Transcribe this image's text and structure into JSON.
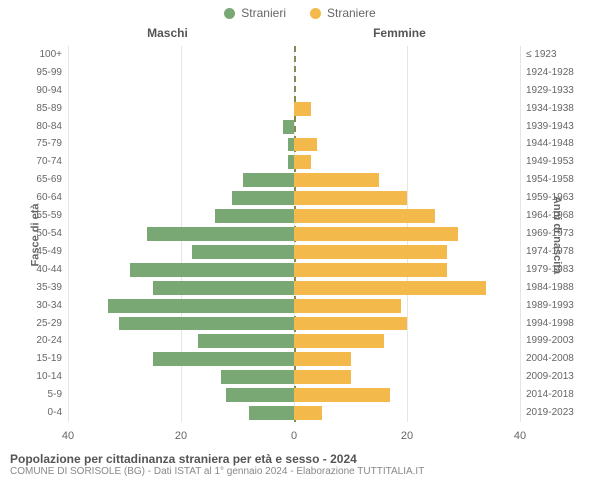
{
  "legend": {
    "male_label": "Stranieri",
    "female_label": "Straniere"
  },
  "columns": {
    "male_header": "Maschi",
    "female_header": "Femmine"
  },
  "axis_labels": {
    "left": "Fasce di età",
    "right": "Anni di nascita"
  },
  "colors": {
    "male": "#7aa874",
    "female": "#f3b94a",
    "grid": "#e5e5e5",
    "center_dash": "#888855",
    "background": "#ffffff",
    "text": "#666666"
  },
  "chart": {
    "type": "population-pyramid",
    "x_max": 40,
    "x_ticks": [
      0,
      20,
      40
    ],
    "bar_gap": 0.18,
    "font_size_ticks": 10,
    "font_size_headers": 12
  },
  "rows": [
    {
      "age": "100+",
      "birth": "≤ 1923",
      "male": 0,
      "female": 0
    },
    {
      "age": "95-99",
      "birth": "1924-1928",
      "male": 0,
      "female": 0
    },
    {
      "age": "90-94",
      "birth": "1929-1933",
      "male": 0,
      "female": 0
    },
    {
      "age": "85-89",
      "birth": "1934-1938",
      "male": 0,
      "female": 3
    },
    {
      "age": "80-84",
      "birth": "1939-1943",
      "male": 2,
      "female": 0
    },
    {
      "age": "75-79",
      "birth": "1944-1948",
      "male": 1,
      "female": 4
    },
    {
      "age": "70-74",
      "birth": "1949-1953",
      "male": 1,
      "female": 3
    },
    {
      "age": "65-69",
      "birth": "1954-1958",
      "male": 9,
      "female": 15
    },
    {
      "age": "60-64",
      "birth": "1959-1963",
      "male": 11,
      "female": 20
    },
    {
      "age": "55-59",
      "birth": "1964-1968",
      "male": 14,
      "female": 25
    },
    {
      "age": "50-54",
      "birth": "1969-1973",
      "male": 26,
      "female": 29
    },
    {
      "age": "45-49",
      "birth": "1974-1978",
      "male": 18,
      "female": 27
    },
    {
      "age": "40-44",
      "birth": "1979-1983",
      "male": 29,
      "female": 27
    },
    {
      "age": "35-39",
      "birth": "1984-1988",
      "male": 25,
      "female": 34
    },
    {
      "age": "30-34",
      "birth": "1989-1993",
      "male": 33,
      "female": 19
    },
    {
      "age": "25-29",
      "birth": "1994-1998",
      "male": 31,
      "female": 20
    },
    {
      "age": "20-24",
      "birth": "1999-2003",
      "male": 17,
      "female": 16
    },
    {
      "age": "15-19",
      "birth": "2004-2008",
      "male": 25,
      "female": 10
    },
    {
      "age": "10-14",
      "birth": "2009-2013",
      "male": 13,
      "female": 10
    },
    {
      "age": "5-9",
      "birth": "2014-2018",
      "male": 12,
      "female": 17
    },
    {
      "age": "0-4",
      "birth": "2019-2023",
      "male": 8,
      "female": 5
    }
  ],
  "footer": {
    "title": "Popolazione per cittadinanza straniera per età e sesso - 2024",
    "subtitle": "COMUNE DI SORISOLE (BG) - Dati ISTAT al 1° gennaio 2024 - Elaborazione TUTTITALIA.IT"
  }
}
